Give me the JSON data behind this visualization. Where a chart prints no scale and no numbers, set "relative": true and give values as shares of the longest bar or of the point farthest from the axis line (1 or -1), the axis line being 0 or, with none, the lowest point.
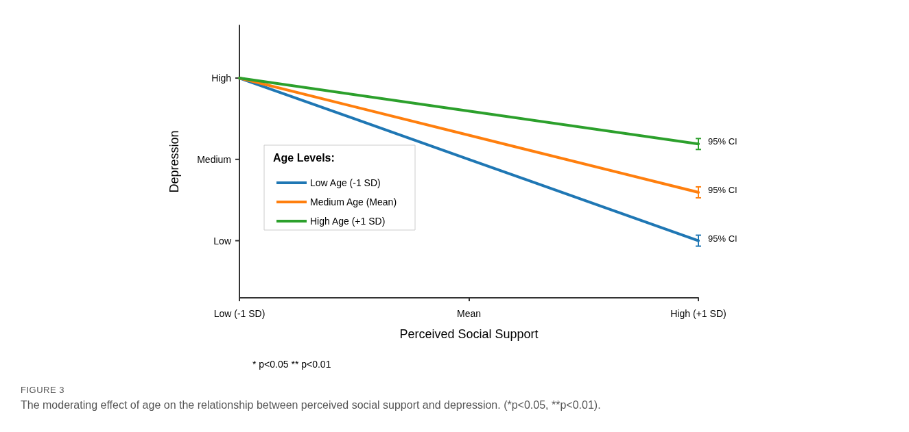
{
  "chart_data": {
    "type": "line",
    "relative": true,
    "xlabel": "Perceived Social Support",
    "ylabel": "Depression",
    "legend_title": "Age Levels:",
    "legend": "left",
    "grid": false,
    "marker": "none",
    "line_style": "solid",
    "x": [
      -1,
      0,
      1
    ],
    "xlim": [
      -1,
      1
    ],
    "xticks": [
      {
        "value": -1,
        "label": "Low (-1 SD)"
      },
      {
        "value": 0,
        "label": "Mean"
      },
      {
        "value": 1,
        "label": "High (+1 SD)"
      }
    ],
    "series": [
      {
        "name": "Low Age (-1 SD)",
        "color": "#1f77b4",
        "values": [
          1,
          0.63,
          0.26
        ]
      },
      {
        "name": "Medium Age (Mean)",
        "color": "#ff7f0e",
        "values": [
          1,
          0.74,
          0.48
        ]
      },
      {
        "name": "High Age (+1 SD)",
        "color": "#2ca02c",
        "values": [
          1,
          0.85,
          0.7
        ]
      }
    ],
    "annotations": [
      "Low",
      "Medium",
      "High",
      "95% CI",
      "95% CI",
      "95% CI",
      "* p<0.05 ** p<0.01",
      "FIGURE 3",
      "The moderating effect of age on the relationship between perceived social support and depression. (*p<0.05, **p<0.01)."
    ]
  }
}
